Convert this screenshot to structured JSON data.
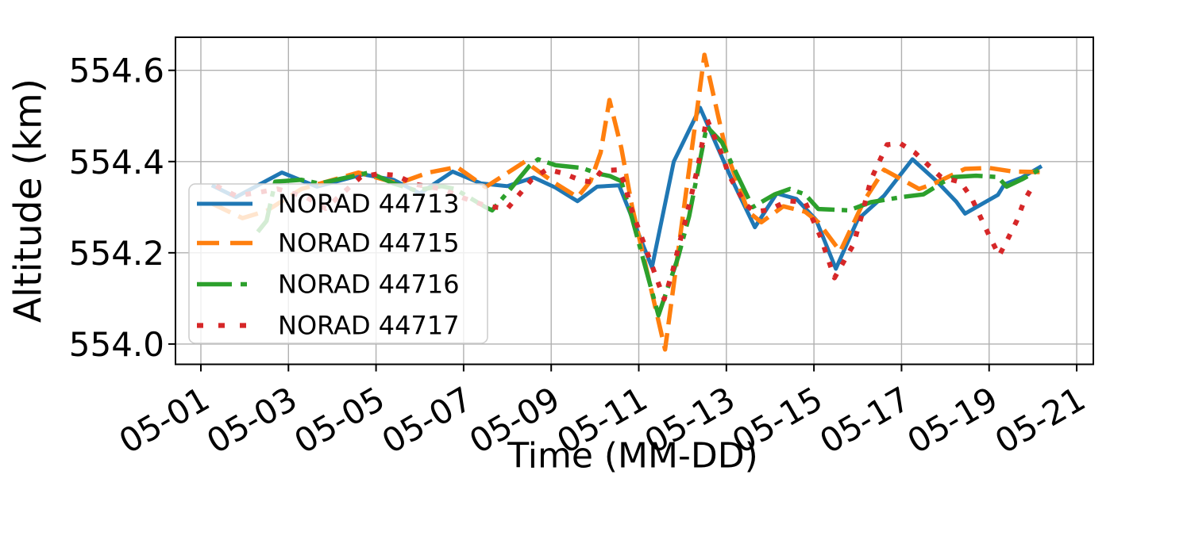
{
  "chart_data": {
    "type": "line",
    "title": "",
    "xlabel": "Time (MM-DD)",
    "ylabel": "Altitude (km)",
    "grid": true,
    "legend": {
      "location": "upper left",
      "frame": true,
      "frame_alpha": 0.8
    },
    "x_ticks": [
      {
        "label": "05-01",
        "day": 1
      },
      {
        "label": "05-03",
        "day": 3
      },
      {
        "label": "05-05",
        "day": 5
      },
      {
        "label": "05-07",
        "day": 7
      },
      {
        "label": "05-09",
        "day": 9
      },
      {
        "label": "05-11",
        "day": 11
      },
      {
        "label": "05-13",
        "day": 13
      },
      {
        "label": "05-15",
        "day": 15
      },
      {
        "label": "05-17",
        "day": 17
      },
      {
        "label": "05-19",
        "day": 19
      },
      {
        "label": "05-21",
        "day": 21
      }
    ],
    "y_ticks": [
      {
        "label": "554.0",
        "value": 554.0
      },
      {
        "label": "554.2",
        "value": 554.2
      },
      {
        "label": "554.4",
        "value": 554.4
      },
      {
        "label": "554.6",
        "value": 554.6
      }
    ],
    "xlim_days": [
      0.42,
      21.38
    ],
    "ylim_km": [
      553.9555,
      554.6725
    ],
    "colors": {
      "blue": "#1f77b4",
      "orange": "#ff7f0e",
      "green": "#2ca02c",
      "red": "#d62728",
      "grid": "#b0b0b0",
      "spine": "#000000",
      "legend_border": "#cccccc"
    },
    "series": [
      {
        "name": "NORAD 44713",
        "color": "#1f77b4",
        "linestyle": "solid",
        "points": [
          [
            1.25,
            554.348
          ],
          [
            1.8,
            554.322
          ],
          [
            2.85,
            554.376
          ],
          [
            3.65,
            554.345
          ],
          [
            4.7,
            554.372
          ],
          [
            5.4,
            554.36
          ],
          [
            6.0,
            554.33
          ],
          [
            6.75,
            554.378
          ],
          [
            7.4,
            554.352
          ],
          [
            8.0,
            554.346
          ],
          [
            8.6,
            554.365
          ],
          [
            9.1,
            554.343
          ],
          [
            9.6,
            554.313
          ],
          [
            10.05,
            554.345
          ],
          [
            10.55,
            554.348
          ],
          [
            11.3,
            554.168
          ],
          [
            11.8,
            554.4
          ],
          [
            12.4,
            554.518
          ],
          [
            13.1,
            554.366
          ],
          [
            13.65,
            554.256
          ],
          [
            14.15,
            554.33
          ],
          [
            14.6,
            554.318
          ],
          [
            15.05,
            554.272
          ],
          [
            15.5,
            554.165
          ],
          [
            16.0,
            554.273
          ],
          [
            16.6,
            554.325
          ],
          [
            17.25,
            554.405
          ],
          [
            17.8,
            554.357
          ],
          [
            18.25,
            554.312
          ],
          [
            18.45,
            554.286
          ],
          [
            19.2,
            554.327
          ],
          [
            19.35,
            554.35
          ],
          [
            19.75,
            554.365
          ],
          [
            20.2,
            554.39
          ]
        ]
      },
      {
        "name": "NORAD 44715",
        "color": "#ff7f0e",
        "linestyle": "dashed",
        "points": [
          [
            1.25,
            554.308
          ],
          [
            1.95,
            554.276
          ],
          [
            2.5,
            554.292
          ],
          [
            3.3,
            554.34
          ],
          [
            4.6,
            554.376
          ],
          [
            5.5,
            554.352
          ],
          [
            6.2,
            554.376
          ],
          [
            6.85,
            554.388
          ],
          [
            7.5,
            554.344
          ],
          [
            8.4,
            554.4
          ],
          [
            9.1,
            554.352
          ],
          [
            9.6,
            554.322
          ],
          [
            9.9,
            554.357
          ],
          [
            10.13,
            554.42
          ],
          [
            10.33,
            554.535
          ],
          [
            10.6,
            554.43
          ],
          [
            10.85,
            554.3
          ],
          [
            11.6,
            553.988
          ],
          [
            12.5,
            554.634
          ],
          [
            13.0,
            554.42
          ],
          [
            13.5,
            554.29
          ],
          [
            13.8,
            554.267
          ],
          [
            14.3,
            554.302
          ],
          [
            14.8,
            554.29
          ],
          [
            15.1,
            554.267
          ],
          [
            15.6,
            554.203
          ],
          [
            16.15,
            554.315
          ],
          [
            16.6,
            554.382
          ],
          [
            17.4,
            554.34
          ],
          [
            17.75,
            554.352
          ],
          [
            18.45,
            554.384
          ],
          [
            19.0,
            554.386
          ],
          [
            19.55,
            554.378
          ],
          [
            20.2,
            554.377
          ]
        ]
      },
      {
        "name": "NORAD 44716",
        "color": "#2ca02c",
        "linestyle": "dashdot",
        "points": [
          [
            2.3,
            554.246
          ],
          [
            2.5,
            554.27
          ],
          [
            2.7,
            554.356
          ],
          [
            3.3,
            554.36
          ],
          [
            3.7,
            554.352
          ],
          [
            4.85,
            554.376
          ],
          [
            5.4,
            554.352
          ],
          [
            5.9,
            554.337
          ],
          [
            6.5,
            554.346
          ],
          [
            6.8,
            554.34
          ],
          [
            7.5,
            554.3
          ],
          [
            7.65,
            554.293
          ],
          [
            8.0,
            554.332
          ],
          [
            8.5,
            554.39
          ],
          [
            8.7,
            554.405
          ],
          [
            9.1,
            554.392
          ],
          [
            9.7,
            554.386
          ],
          [
            10.05,
            554.374
          ],
          [
            10.35,
            554.368
          ],
          [
            10.6,
            554.357
          ],
          [
            10.85,
            554.275
          ],
          [
            11.45,
            554.063
          ],
          [
            11.9,
            554.191
          ],
          [
            12.15,
            554.28
          ],
          [
            12.55,
            554.477
          ],
          [
            12.9,
            554.442
          ],
          [
            13.1,
            554.4
          ],
          [
            13.35,
            554.35
          ],
          [
            13.6,
            554.3
          ],
          [
            14.1,
            554.328
          ],
          [
            14.45,
            554.34
          ],
          [
            14.8,
            554.328
          ],
          [
            15.1,
            554.296
          ],
          [
            15.8,
            554.293
          ],
          [
            16.3,
            554.311
          ],
          [
            17.0,
            554.322
          ],
          [
            17.5,
            554.328
          ],
          [
            17.95,
            554.355
          ],
          [
            18.2,
            554.366
          ],
          [
            18.7,
            554.369
          ],
          [
            19.2,
            554.366
          ],
          [
            19.4,
            554.345
          ],
          [
            19.75,
            554.361
          ],
          [
            20.2,
            554.385
          ]
        ]
      },
      {
        "name": "NORAD 44717",
        "color": "#d62728",
        "linestyle": "dotted",
        "points": [
          [
            1.35,
            554.347
          ],
          [
            1.8,
            554.325
          ],
          [
            2.3,
            554.332
          ],
          [
            2.75,
            554.34
          ],
          [
            3.4,
            554.322
          ],
          [
            3.85,
            554.297
          ],
          [
            4.65,
            554.366
          ],
          [
            5.05,
            554.373
          ],
          [
            5.45,
            554.37
          ],
          [
            5.9,
            554.35
          ],
          [
            6.5,
            554.34
          ],
          [
            7.0,
            554.32
          ],
          [
            7.55,
            554.302
          ],
          [
            8.0,
            554.297
          ],
          [
            8.55,
            554.36
          ],
          [
            8.9,
            554.383
          ],
          [
            9.25,
            554.375
          ],
          [
            9.7,
            554.358
          ],
          [
            9.95,
            554.355
          ],
          [
            10.15,
            554.38
          ],
          [
            10.55,
            554.382
          ],
          [
            10.7,
            554.345
          ],
          [
            10.8,
            554.304
          ],
          [
            10.95,
            554.264
          ],
          [
            11.15,
            554.212
          ],
          [
            11.35,
            554.159
          ],
          [
            11.58,
            554.098
          ],
          [
            11.78,
            554.162
          ],
          [
            11.92,
            554.218
          ],
          [
            12.08,
            554.276
          ],
          [
            12.22,
            554.334
          ],
          [
            12.35,
            554.39
          ],
          [
            12.46,
            554.446
          ],
          [
            12.55,
            554.495
          ],
          [
            12.7,
            554.46
          ],
          [
            12.9,
            554.416
          ],
          [
            13.05,
            554.372
          ],
          [
            13.25,
            554.337
          ],
          [
            13.45,
            554.305
          ],
          [
            13.65,
            554.29
          ],
          [
            13.97,
            554.294
          ],
          [
            14.4,
            554.314
          ],
          [
            14.8,
            554.311
          ],
          [
            15.15,
            554.235
          ],
          [
            15.47,
            554.145
          ],
          [
            15.9,
            554.218
          ],
          [
            16.1,
            554.285
          ],
          [
            16.3,
            554.36
          ],
          [
            16.67,
            554.437
          ],
          [
            16.97,
            554.44
          ],
          [
            17.3,
            554.42
          ],
          [
            17.9,
            554.366
          ],
          [
            18.35,
            554.355
          ],
          [
            18.6,
            554.32
          ],
          [
            18.8,
            554.279
          ],
          [
            19.0,
            554.238
          ],
          [
            19.23,
            554.194
          ],
          [
            19.42,
            554.229
          ],
          [
            19.63,
            554.27
          ],
          [
            19.8,
            554.314
          ],
          [
            20.05,
            554.355
          ]
        ]
      }
    ]
  }
}
